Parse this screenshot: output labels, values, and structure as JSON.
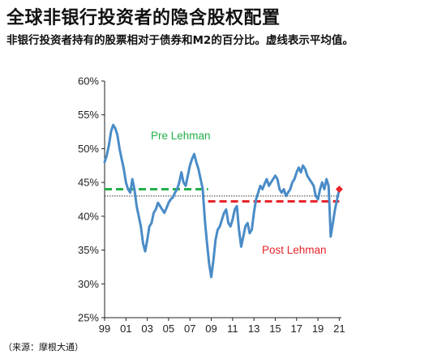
{
  "header": {
    "title": "全球非银行投资者的隐含股权配置",
    "subtitle": "非银行投资者持有的股票相对于债券和M2的百分比。虚线表示平均值。",
    "source": "（来源：摩根大通）"
  },
  "chart_data": {
    "type": "line",
    "title": "全球非银行投资者的隐含股权配置",
    "xlabel": "",
    "ylabel": "",
    "xlim": [
      1999.0,
      2021.2
    ],
    "ylim": [
      25,
      60
    ],
    "x_tick_labels": [
      "99",
      "01",
      "03",
      "05",
      "07",
      "09",
      "11",
      "13",
      "15",
      "17",
      "19",
      "21"
    ],
    "y_tick_labels": [
      "25%",
      "30%",
      "35%",
      "40%",
      "45%",
      "50%",
      "55%",
      "60%"
    ],
    "y_ticks": [
      25,
      30,
      35,
      40,
      45,
      50,
      55,
      60
    ],
    "grid": false,
    "legend": "none",
    "series": [
      {
        "color": "#4a8cc7",
        "x": [
          1999.0,
          1999.2,
          1999.4,
          1999.6,
          1999.8,
          2000.0,
          2000.2,
          2000.4,
          2000.6,
          2000.8,
          2001.0,
          2001.2,
          2001.4,
          2001.6,
          2001.8,
          2002.0,
          2002.2,
          2002.4,
          2002.6,
          2002.8,
          2003.0,
          2003.2,
          2003.4,
          2003.6,
          2003.8,
          2004.0,
          2004.2,
          2004.4,
          2004.6,
          2004.8,
          2005.0,
          2005.2,
          2005.4,
          2005.6,
          2005.8,
          2006.0,
          2006.2,
          2006.4,
          2006.6,
          2006.8,
          2007.0,
          2007.2,
          2007.4,
          2007.6,
          2007.8,
          2008.0,
          2008.2,
          2008.4,
          2008.6,
          2008.8,
          2009.0,
          2009.2,
          2009.4,
          2009.6,
          2009.8,
          2010.0,
          2010.2,
          2010.4,
          2010.6,
          2010.8,
          2011.0,
          2011.2,
          2011.4,
          2011.6,
          2011.8,
          2012.0,
          2012.2,
          2012.4,
          2012.6,
          2012.8,
          2013.0,
          2013.2,
          2013.4,
          2013.6,
          2013.8,
          2014.0,
          2014.2,
          2014.4,
          2014.6,
          2014.8,
          2015.0,
          2015.2,
          2015.4,
          2015.6,
          2015.8,
          2016.0,
          2016.2,
          2016.4,
          2016.6,
          2016.8,
          2017.0,
          2017.2,
          2017.4,
          2017.6,
          2017.8,
          2018.0,
          2018.2,
          2018.4,
          2018.6,
          2018.8,
          2019.0,
          2019.2,
          2019.4,
          2019.6,
          2019.8,
          2020.0,
          2020.1,
          2020.2,
          2020.4,
          2020.6,
          2020.8,
          2021.0
        ],
        "values": [
          48.0,
          49.0,
          50.5,
          52.5,
          53.5,
          53.0,
          52.0,
          50.0,
          48.5,
          47.0,
          45.0,
          44.0,
          43.5,
          45.5,
          44.0,
          41.5,
          40.0,
          38.5,
          36.0,
          34.8,
          36.5,
          38.5,
          39.0,
          40.5,
          41.0,
          42.0,
          41.5,
          41.0,
          40.5,
          41.2,
          42.0,
          42.5,
          42.8,
          43.5,
          44.0,
          45.0,
          46.5,
          45.0,
          44.5,
          46.0,
          47.5,
          48.5,
          49.2,
          48.0,
          47.0,
          45.5,
          44.0,
          39.5,
          36.0,
          33.0,
          31.0,
          33.5,
          36.5,
          38.0,
          38.5,
          39.5,
          40.5,
          41.0,
          39.0,
          38.5,
          39.5,
          41.0,
          41.5,
          38.0,
          35.5,
          37.0,
          38.5,
          39.0,
          37.5,
          38.0,
          40.5,
          42.5,
          43.5,
          44.5,
          44.0,
          44.8,
          45.5,
          44.5,
          45.0,
          45.5,
          46.0,
          45.5,
          44.0,
          43.5,
          44.0,
          43.0,
          43.5,
          44.0,
          45.0,
          45.5,
          46.5,
          47.2,
          46.5,
          47.5,
          47.0,
          46.0,
          45.5,
          45.0,
          44.5,
          43.0,
          42.5,
          44.0,
          45.0,
          44.0,
          45.5,
          44.5,
          41.0,
          37.0,
          39.0,
          41.0,
          42.5,
          44.0
        ]
      }
    ],
    "reference_lines": [
      {
        "label": "Pre Lehman",
        "y": 44.0,
        "x_start": 1999.0,
        "x_end": 2008.7,
        "color": "#22b04a",
        "style": "dashed"
      },
      {
        "label": "Post Lehman",
        "y": 42.2,
        "x_start": 2008.7,
        "x_end": 2021.0,
        "color": "#e8252a",
        "style": "dashed"
      },
      {
        "label": "",
        "y": 43.0,
        "x_start": 1999.0,
        "x_end": 2021.0,
        "color": "#333333",
        "style": "dotted"
      }
    ],
    "annotations": [
      {
        "text": "Pre Lehman",
        "color": "#22b04a"
      },
      {
        "text": "Post Lehman",
        "color": "#e8252a"
      }
    ],
    "end_marker": {
      "x": 2021.0,
      "y": 44.0,
      "color": "#e8252a",
      "shape": "diamond"
    }
  }
}
